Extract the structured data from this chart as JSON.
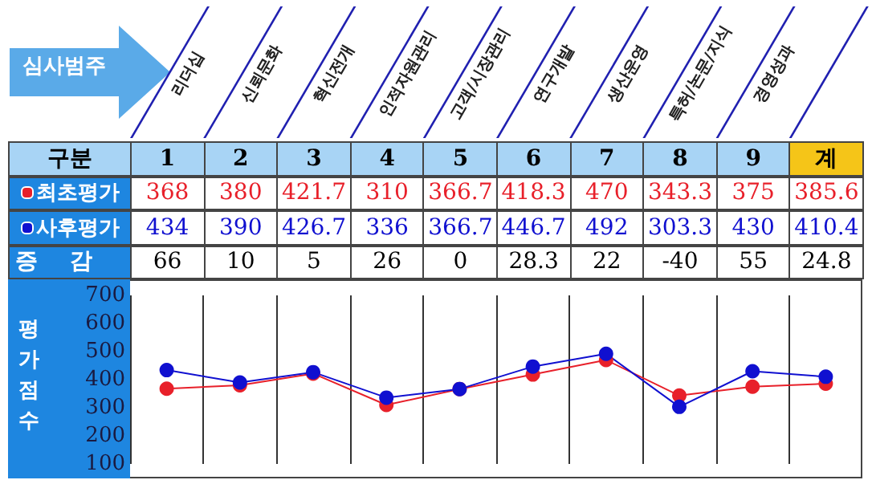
{
  "chart_data": {
    "type": "line",
    "xlabel": "심사범주",
    "ylabel": "평가점수",
    "legend_title": "구분",
    "annotations": [
      "리더십",
      "신뢰문화",
      "혁신전개",
      "인적자원관리",
      "고객/시장관리",
      "연구개발",
      "생산운영",
      "특허/논문/지식",
      "경영성과",
      "증감",
      "66",
      "10",
      "5",
      "26",
      "0",
      "28.3",
      "22",
      "-40",
      "55",
      "24.8"
    ],
    "categories": [
      "1",
      "2",
      "3",
      "4",
      "5",
      "6",
      "7",
      "8",
      "9",
      "계"
    ],
    "series": [
      {
        "name": "최초평가",
        "color": "#e8202a",
        "values": [
          368,
          380,
          421.7,
          310,
          366.7,
          418.3,
          470,
          343.3,
          375,
          385.6
        ]
      },
      {
        "name": "사후평가",
        "color": "#1010d0",
        "values": [
          434,
          390,
          426.7,
          336,
          366.7,
          446.7,
          492,
          303.3,
          430,
          410.4
        ]
      }
    ],
    "ylim": [
      100,
      700
    ],
    "yticks": [
      100,
      200,
      300,
      400,
      500,
      600,
      700
    ],
    "grid": "x",
    "marker": "circle",
    "line_style": "solid",
    "data_labels": true,
    "legend": "left"
  }
}
